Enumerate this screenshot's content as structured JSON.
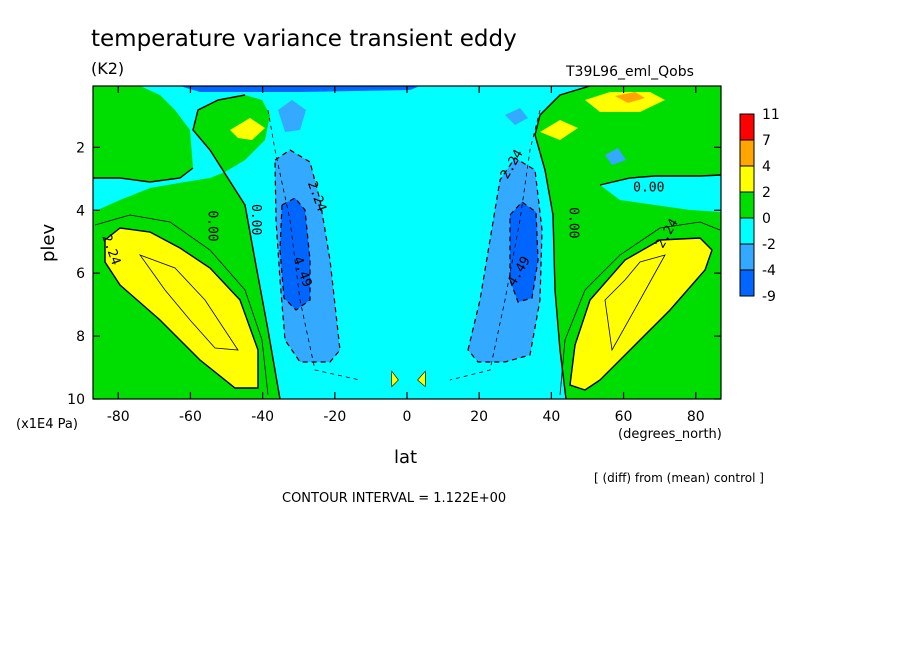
{
  "chart_data": {
    "type": "contour",
    "title": "temperature variance transient eddy",
    "units": "(K2)",
    "experiment": "T39L96_eml_Qobs",
    "xlabel": "lat",
    "xunits": "(degrees_north)",
    "ylabel": "plev",
    "yunits": "(x1E4 Pa)",
    "xlim": [
      -87,
      87
    ],
    "ylim": [
      0.05,
      10
    ],
    "x_ticks": [
      -80,
      -60,
      -40,
      -20,
      0,
      20,
      40,
      60,
      80
    ],
    "x_tick_labels": [
      "-80",
      "-60",
      "-40",
      "-20",
      "0",
      "20",
      "40",
      "60",
      "80"
    ],
    "y_ticks": [
      2,
      4,
      6,
      8,
      10
    ],
    "y_tick_labels": [
      "2",
      "4",
      "6",
      "8",
      "10"
    ],
    "legend": {
      "levels": [
        "11",
        "7",
        "4",
        "2",
        "0",
        "-2",
        "-4",
        "-9"
      ],
      "colors": [
        "#ff0000",
        "#ffa500",
        "#ffff00",
        "#00dd00",
        "#00ffff",
        "#33aaff",
        "#0066ff"
      ]
    },
    "contour_labels": [
      {
        "text": "0.00",
        "lat": -55,
        "plev": 4.5
      },
      {
        "text": "0.00",
        "lat": -43,
        "plev": 4.3
      },
      {
        "text": "2.24",
        "lat": -83,
        "plev": 5.3
      },
      {
        "text": "2.24",
        "lat": -26,
        "plev": 3.6
      },
      {
        "text": "4.49",
        "lat": -30,
        "plev": 6.0
      },
      {
        "text": "2.24",
        "lat": 30,
        "plev": 2.6
      },
      {
        "text": "4.49",
        "lat": 32,
        "plev": 6.0
      },
      {
        "text": "0.00",
        "lat": 45,
        "plev": 4.4
      },
      {
        "text": "0.00",
        "lat": 67,
        "plev": 3.4
      },
      {
        "text": "2.24",
        "lat": 73,
        "plev": 4.8
      }
    ],
    "footer": {
      "diff_note": "[ (diff) from (mean) control ]",
      "contour_interval": "CONTOUR INTERVAL = 1.122E+00"
    }
  }
}
